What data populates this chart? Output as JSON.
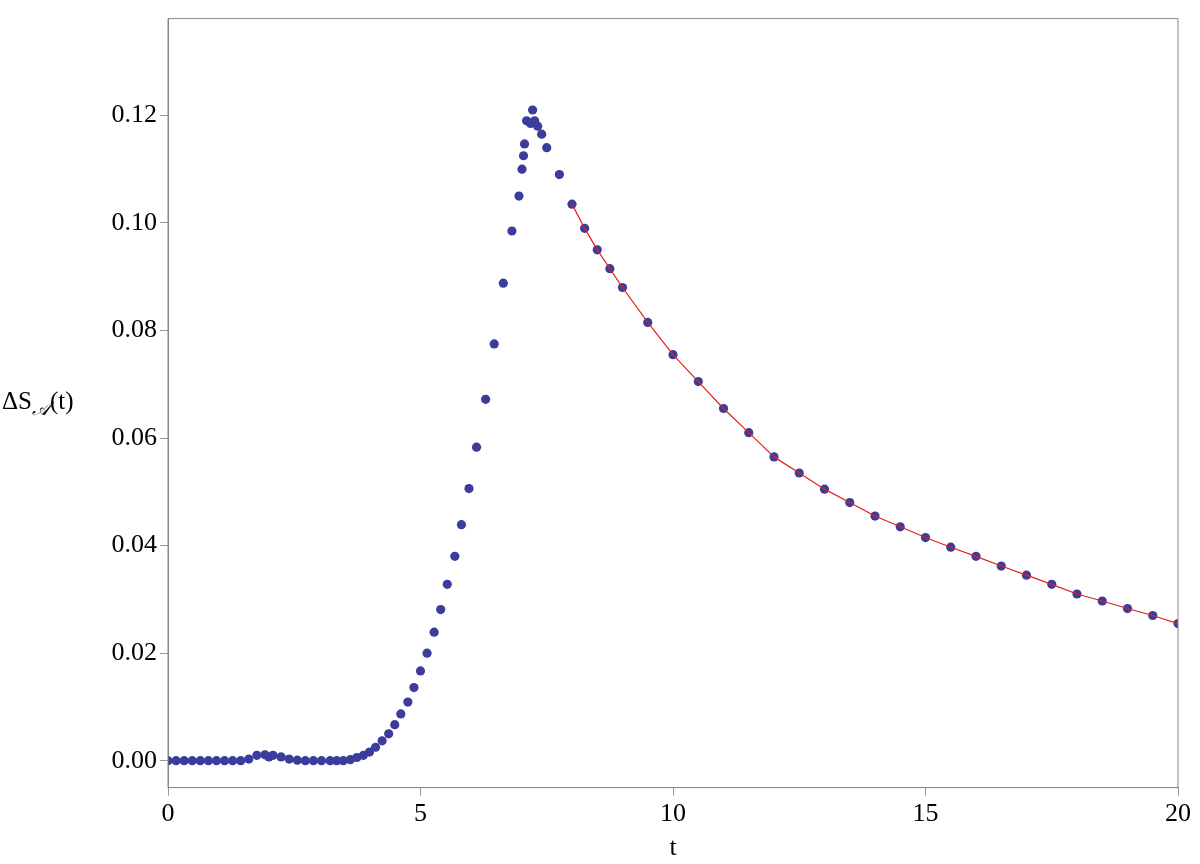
{
  "chart_data": {
    "type": "scatter",
    "xlabel": "t",
    "ylabel": "ΔS$_{𝒜}$(t)",
    "grid": false,
    "legend": false,
    "xlim": [
      0,
      20
    ],
    "xticks": [
      0,
      5,
      10,
      15,
      20
    ],
    "ylim": [
      -0.005,
      0.138
    ],
    "yticks": [
      {
        "value": 0,
        "label": "0.00"
      },
      {
        "value": 0.02,
        "label": "0.02"
      },
      {
        "value": 0.04,
        "label": "0.04"
      },
      {
        "value": 0.06,
        "label": "0.06"
      },
      {
        "value": 0.08,
        "label": "0.08"
      },
      {
        "value": 0.1,
        "label": "0.10"
      },
      {
        "value": 0.12,
        "label": "0.12"
      }
    ],
    "series": [
      {
        "marker": "circle",
        "color": "#3c3c9c",
        "x": [
          0,
          0.16,
          0.32,
          0.48,
          0.64,
          0.8,
          0.96,
          1.12,
          1.28,
          1.44,
          1.6,
          1.76,
          1.92,
          2.0,
          2.08,
          2.24,
          2.4,
          2.56,
          2.72,
          2.88,
          3.04,
          3.21,
          3.34,
          3.47,
          3.61,
          3.74,
          3.87,
          3.99,
          4.11,
          4.24,
          4.37,
          4.49,
          4.61,
          4.75,
          4.87,
          5.0,
          5.13,
          5.27,
          5.4,
          5.53,
          5.68,
          5.81,
          5.96,
          6.11,
          6.29,
          6.46,
          6.64,
          6.81,
          6.95,
          7.01,
          7.04,
          7.06,
          7.1,
          7.18,
          7.22,
          7.26,
          7.32,
          7.4,
          7.5,
          7.75,
          8,
          8.25,
          8.5,
          8.75,
          9,
          9.5,
          10,
          10.5,
          11,
          11.5,
          12,
          12.5,
          13,
          13.5,
          14,
          14.5,
          15,
          15.5,
          16,
          16.5,
          17,
          17.5,
          18,
          18.5,
          19,
          19.5,
          20
        ],
        "values": [
          0,
          0,
          0,
          0,
          0,
          0,
          0,
          0,
          0,
          0,
          0.0003,
          0.001,
          0.0011,
          0.0007,
          0.001,
          0.0007,
          0.0003,
          0.0001,
          0,
          0,
          0,
          0,
          0,
          0,
          0.0002,
          0.0006,
          0.001,
          0.0016,
          0.0025,
          0.0037,
          0.005,
          0.0067,
          0.0087,
          0.0109,
          0.0136,
          0.0167,
          0.02,
          0.0239,
          0.0281,
          0.0328,
          0.038,
          0.0439,
          0.0506,
          0.0583,
          0.0672,
          0.0775,
          0.0888,
          0.0985,
          0.105,
          0.11,
          0.1125,
          0.1147,
          0.119,
          0.1185,
          0.121,
          0.119,
          0.118,
          0.1165,
          0.114,
          0.109,
          0.1035,
          0.099,
          0.095,
          0.0915,
          0.088,
          0.0815,
          0.0755,
          0.0705,
          0.0655,
          0.061,
          0.0565,
          0.0535,
          0.0505,
          0.048,
          0.0455,
          0.0435,
          0.0415,
          0.0397,
          0.038,
          0.0362,
          0.0345,
          0.0328,
          0.031,
          0.0297,
          0.0283,
          0.027,
          0.0255
        ]
      },
      {
        "type": "line",
        "marker": "none",
        "color": "#e0201b",
        "x": [
          8,
          8.25,
          8.5,
          8.75,
          9,
          9.5,
          10,
          10.5,
          11,
          11.5,
          12,
          12.5,
          13,
          13.5,
          14,
          14.5,
          15,
          15.5,
          16,
          16.5,
          17,
          17.5,
          18,
          18.5,
          19,
          19.5,
          20
        ],
        "values": [
          0.1035,
          0.099,
          0.095,
          0.0915,
          0.088,
          0.0815,
          0.0755,
          0.0705,
          0.0655,
          0.061,
          0.0565,
          0.0535,
          0.0505,
          0.048,
          0.0455,
          0.0435,
          0.0415,
          0.0397,
          0.038,
          0.0362,
          0.0345,
          0.0328,
          0.031,
          0.0297,
          0.0283,
          0.027,
          0.0255
        ]
      }
    ]
  }
}
